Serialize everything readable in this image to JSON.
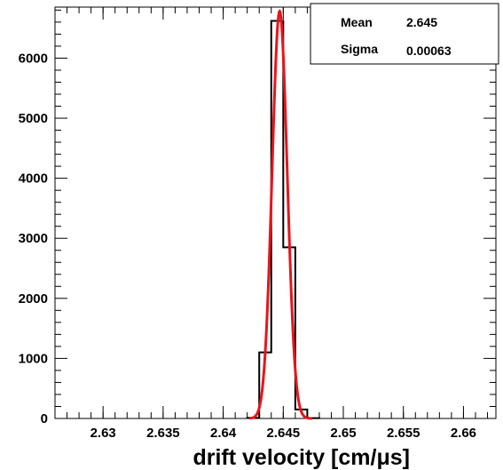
{
  "chart_data": {
    "type": "bar",
    "histogram": true,
    "xlabel": "drift velocity [cm/μs]",
    "ylabel": "",
    "xlim": [
      2.626,
      2.6627
    ],
    "ylim": [
      0,
      6850
    ],
    "x_ticks": [
      {
        "value": 2.63,
        "label": "2.63"
      },
      {
        "value": 2.635,
        "label": "2.635"
      },
      {
        "value": 2.64,
        "label": "2.64"
      },
      {
        "value": 2.645,
        "label": "2.645"
      },
      {
        "value": 2.65,
        "label": "2.65"
      },
      {
        "value": 2.655,
        "label": "2.655"
      },
      {
        "value": 2.66,
        "label": "2.66"
      }
    ],
    "y_ticks": [
      {
        "value": 0,
        "label": "0"
      },
      {
        "value": 1000,
        "label": "1000"
      },
      {
        "value": 2000,
        "label": "2000"
      },
      {
        "value": 3000,
        "label": "3000"
      },
      {
        "value": 4000,
        "label": "4000"
      },
      {
        "value": 5000,
        "label": "5000"
      },
      {
        "value": 6000,
        "label": "6000"
      }
    ],
    "bins": [
      {
        "x0": 2.642,
        "x1": 2.643,
        "count": 10
      },
      {
        "x0": 2.643,
        "x1": 2.644,
        "count": 1100
      },
      {
        "x0": 2.644,
        "x1": 2.645,
        "count": 6620
      },
      {
        "x0": 2.645,
        "x1": 2.646,
        "count": 2850
      },
      {
        "x0": 2.646,
        "x1": 2.647,
        "count": 150
      },
      {
        "x0": 2.647,
        "x1": 2.648,
        "count": 5
      }
    ],
    "fit": {
      "type": "gaussian",
      "color": "#e8141c",
      "amplitude": 6780,
      "mean": 2.6447,
      "sigma": 0.00063,
      "range": [
        2.6422,
        2.6474
      ]
    },
    "stats_box": {
      "rows": [
        {
          "label": "Mean",
          "value": "2.645"
        },
        {
          "label": "Sigma",
          "value": "0.00063"
        }
      ],
      "position": "top-right"
    },
    "grid": false,
    "histogram_color": "#000000"
  }
}
